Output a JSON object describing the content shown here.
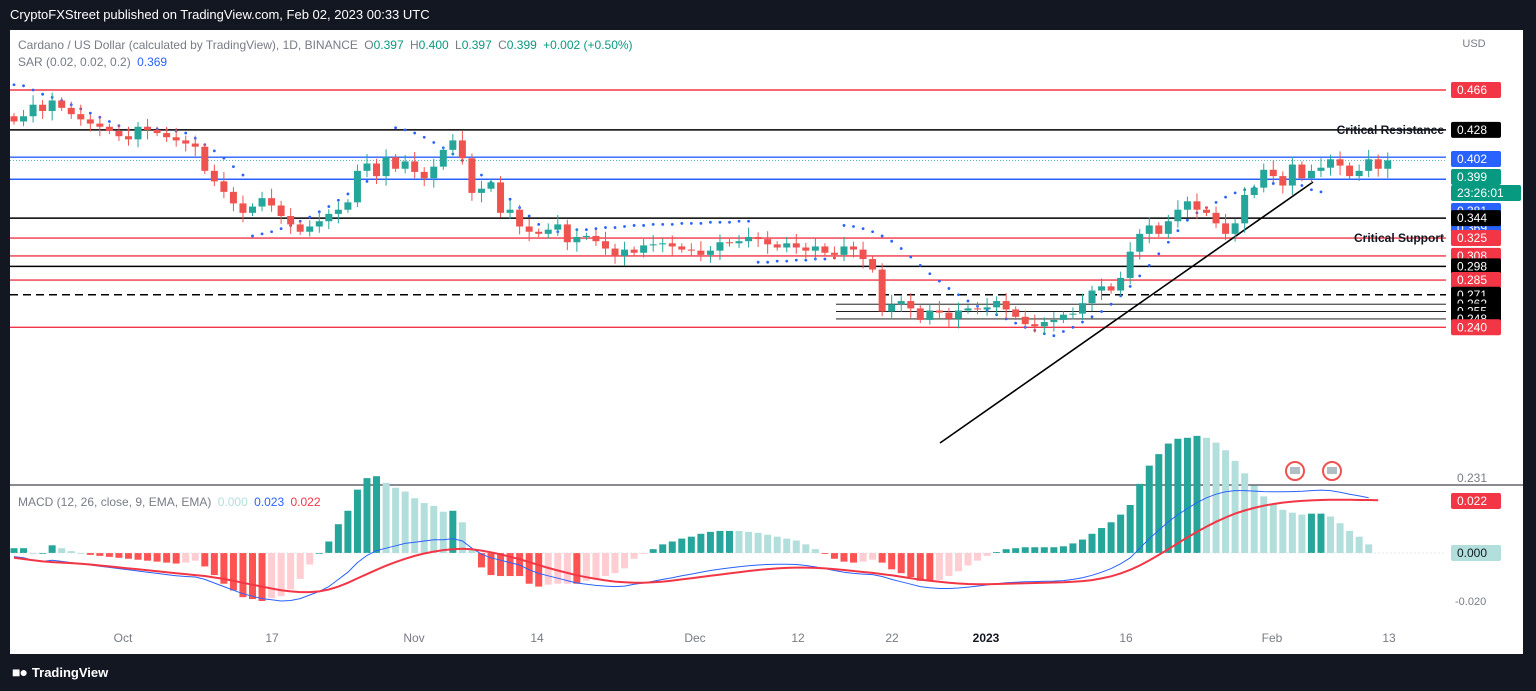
{
  "header": {
    "published_text": "CryptoFXStreet published on TradingView.com, Feb 02, 2023 00:33 UTC"
  },
  "footer": {
    "brand": "TradingView"
  },
  "legend": {
    "symbol": "Cardano / US Dollar (calculated by TradingView), 1D, BINANCE",
    "o_label": "O",
    "o_val": "0.397",
    "h_label": "H",
    "h_val": "0.400",
    "l_label": "L",
    "l_val": "0.397",
    "c_label": "C",
    "c_val": "0.399",
    "change": "+0.002 (+0.50%)",
    "sar_label": "SAR (0.02, 0.02, 0.2)",
    "sar_val": "0.369",
    "macd_label": "MACD (12, 26, close, 9, EMA, EMA)",
    "macd_hist": "0.000",
    "macd_line": "0.023",
    "macd_signal": "0.022"
  },
  "colors": {
    "up": "#26a69a",
    "down": "#ef5350",
    "sar": "#2962ff",
    "macd_line": "#2962ff",
    "signal_line": "#f23645",
    "hist_up": "#26a69a",
    "hist_up_weak": "#b2dfdb",
    "hist_down": "#ff5252",
    "hist_down_weak": "#ffcdd2",
    "resistance": "#f23645",
    "support_black": "#000000",
    "blue_level": "#2962ff"
  },
  "chart_data": [
    {
      "type": "candlestick",
      "symbol": "ADA/USD",
      "timeframe": "1D",
      "y_axis_unit": "USD",
      "ylim": [
        0.225,
        0.482
      ],
      "x_ticks": [
        "Oct",
        "17",
        "Nov",
        "14",
        "Dec",
        "12",
        "22",
        "2023",
        "16",
        "Feb",
        "13"
      ],
      "x_range": [
        "2022-09-23",
        "2023-02-18"
      ],
      "annotations": [
        {
          "label": "Critical Resistance",
          "value": 0.428
        },
        {
          "label": "Critical Support",
          "value": 0.325
        }
      ],
      "horizontal_levels": [
        {
          "value": 0.466,
          "style": "red"
        },
        {
          "value": 0.428,
          "style": "black"
        },
        {
          "value": 0.402,
          "style": "blue"
        },
        {
          "value": 0.381,
          "style": "blue"
        },
        {
          "value": 0.344,
          "style": "black"
        },
        {
          "value": 0.325,
          "style": "red"
        },
        {
          "value": 0.308,
          "style": "red"
        },
        {
          "value": 0.298,
          "style": "black"
        },
        {
          "value": 0.285,
          "style": "red"
        },
        {
          "value": 0.271,
          "style": "black-dashed"
        },
        {
          "value": 0.262,
          "style": "black-thin"
        },
        {
          "value": 0.255,
          "style": "black-thin"
        },
        {
          "value": 0.248,
          "style": "black-thin"
        },
        {
          "value": 0.24,
          "style": "red"
        }
      ],
      "price_badges": [
        {
          "value": "0.466",
          "style": "red"
        },
        {
          "value": "0.428",
          "style": "black"
        },
        {
          "value": "0.402",
          "style": "blue"
        },
        {
          "value": "0.399",
          "style": "green"
        },
        {
          "value": "23:26:01",
          "style": "green"
        },
        {
          "value": "0.381",
          "style": "blue"
        },
        {
          "value": "0.369",
          "style": "blue"
        },
        {
          "value": "0.344",
          "style": "black"
        },
        {
          "value": "0.325",
          "style": "red"
        },
        {
          "value": "0.308",
          "style": "red"
        },
        {
          "value": "0.298",
          "style": "black"
        },
        {
          "value": "0.285",
          "style": "red"
        },
        {
          "value": "0.271",
          "style": "black"
        },
        {
          "value": "0.262",
          "style": "black"
        },
        {
          "value": "0.255",
          "style": "black"
        },
        {
          "value": "0.248",
          "style": "black"
        },
        {
          "value": "0.240",
          "style": "red"
        },
        {
          "value": "0.231",
          "style": "plain"
        }
      ],
      "closes": [
        0.436,
        0.441,
        0.452,
        0.446,
        0.456,
        0.449,
        0.443,
        0.438,
        0.434,
        0.431,
        0.427,
        0.422,
        0.419,
        0.431,
        0.428,
        0.425,
        0.421,
        0.418,
        0.415,
        0.412,
        0.389,
        0.379,
        0.369,
        0.358,
        0.349,
        0.355,
        0.363,
        0.356,
        0.346,
        0.338,
        0.331,
        0.336,
        0.341,
        0.348,
        0.352,
        0.359,
        0.389,
        0.396,
        0.384,
        0.402,
        0.391,
        0.398,
        0.388,
        0.382,
        0.393,
        0.409,
        0.418,
        0.401,
        0.368,
        0.372,
        0.378,
        0.349,
        0.352,
        0.336,
        0.331,
        0.329,
        0.333,
        0.338,
        0.321,
        0.326,
        0.327,
        0.322,
        0.315,
        0.308,
        0.314,
        0.311,
        0.318,
        0.319,
        0.32,
        0.317,
        0.314,
        0.313,
        0.309,
        0.313,
        0.321,
        0.32,
        0.322,
        0.326,
        0.324,
        0.319,
        0.316,
        0.32,
        0.316,
        0.313,
        0.317,
        0.311,
        0.309,
        0.317,
        0.314,
        0.305,
        0.295,
        0.255,
        0.262,
        0.265,
        0.258,
        0.247,
        0.256,
        0.254,
        0.248,
        0.256,
        0.258,
        0.257,
        0.259,
        0.265,
        0.257,
        0.25,
        0.243,
        0.241,
        0.245,
        0.247,
        0.252,
        0.253,
        0.263,
        0.275,
        0.279,
        0.275,
        0.287,
        0.312,
        0.329,
        0.337,
        0.329,
        0.341,
        0.352,
        0.36,
        0.352,
        0.349,
        0.339,
        0.329,
        0.339,
        0.366,
        0.373,
        0.39,
        0.384,
        0.375,
        0.395,
        0.382,
        0.389,
        0.392,
        0.4,
        0.394,
        0.384,
        0.389,
        0.4,
        0.391,
        0.399
      ],
      "sar_values": [
        0.471,
        0.47,
        0.466,
        0.462,
        0.459,
        0.456,
        0.452,
        0.448,
        0.444,
        0.44,
        0.436,
        0.432,
        0.428,
        0.425,
        0.43,
        0.429,
        0.428,
        0.427,
        0.425,
        0.42,
        0.414,
        0.408,
        0.401,
        0.393,
        0.385,
        0.327,
        0.329,
        0.331,
        0.334,
        0.337,
        0.341,
        0.345,
        0.35,
        0.355,
        0.361,
        0.367,
        0.373,
        0.379,
        0.385,
        0.391,
        0.43,
        0.428,
        0.425,
        0.421,
        0.416,
        0.411,
        0.405,
        0.399,
        0.392,
        0.385,
        0.378,
        0.37,
        0.362,
        0.354,
        0.346,
        0.338,
        0.331,
        0.331,
        0.332,
        0.333,
        0.333,
        0.334,
        0.335,
        0.335,
        0.336,
        0.337,
        0.337,
        0.338,
        0.338,
        0.338,
        0.339,
        0.339,
        0.339,
        0.34,
        0.34,
        0.34,
        0.341,
        0.341,
        0.302,
        0.302,
        0.303,
        0.303,
        0.304,
        0.304,
        0.305,
        0.305,
        0.306,
        0.337,
        0.336,
        0.334,
        0.331,
        0.327,
        0.322,
        0.315,
        0.307,
        0.299,
        0.291,
        0.284,
        0.277,
        0.271,
        0.265,
        0.26,
        0.256,
        0.252,
        0.248,
        0.244,
        0.24,
        0.237,
        0.234,
        0.232,
        0.236,
        0.24,
        0.245,
        0.25,
        0.255,
        0.262,
        0.27,
        0.279,
        0.289,
        0.299,
        0.31,
        0.321,
        0.332,
        0.342,
        0.349,
        0.354,
        0.359,
        0.364,
        0.368,
        0.371,
        0.373,
        0.375,
        0.377,
        0.379,
        0.381,
        0.375,
        0.371,
        0.369
      ]
    },
    {
      "type": "macd",
      "params": "12, 26, close, 9, EMA, EMA",
      "ylim": [
        -0.028,
        0.03
      ],
      "y_ticks": [
        0.0,
        -0.02
      ],
      "macd": [
        -0.0015,
        -0.002,
        -0.003,
        -0.0035,
        -0.003,
        -0.0035,
        -0.004,
        -0.0045,
        -0.005,
        -0.0055,
        -0.006,
        -0.0065,
        -0.007,
        -0.0075,
        -0.008,
        -0.0085,
        -0.009,
        -0.0095,
        -0.0098,
        -0.01,
        -0.011,
        -0.0125,
        -0.014,
        -0.0155,
        -0.017,
        -0.018,
        -0.019,
        -0.0195,
        -0.02,
        -0.0198,
        -0.019,
        -0.0175,
        -0.016,
        -0.014,
        -0.011,
        -0.008,
        -0.004,
        -0.001,
        0.001,
        0.002,
        0.003,
        0.004,
        0.0045,
        0.005,
        0.0055,
        0.0055,
        0.006,
        0.005,
        0.002,
        -0.0005,
        -0.002,
        -0.003,
        -0.004,
        -0.005,
        -0.007,
        -0.0085,
        -0.0095,
        -0.0105,
        -0.0115,
        -0.0125,
        -0.013,
        -0.0135,
        -0.0138,
        -0.014,
        -0.0138,
        -0.013,
        -0.0125,
        -0.0118,
        -0.011,
        -0.0103,
        -0.0095,
        -0.0088,
        -0.008,
        -0.0073,
        -0.0067,
        -0.0062,
        -0.0057,
        -0.0053,
        -0.005,
        -0.0048,
        -0.0047,
        -0.0047,
        -0.0048,
        -0.0052,
        -0.0058,
        -0.0065,
        -0.0073,
        -0.008,
        -0.0085,
        -0.0088,
        -0.009,
        -0.0098,
        -0.011,
        -0.012,
        -0.013,
        -0.014,
        -0.0145,
        -0.0148,
        -0.0148,
        -0.0146,
        -0.0142,
        -0.0138,
        -0.0133,
        -0.0128,
        -0.0124,
        -0.0122,
        -0.012,
        -0.0119,
        -0.0118,
        -0.0117,
        -0.0115,
        -0.011,
        -0.0103,
        -0.0093,
        -0.008,
        -0.0065,
        -0.0045,
        -0.002,
        0.002,
        0.006,
        0.0095,
        0.013,
        0.016,
        0.0185,
        0.021,
        0.023,
        0.0245,
        0.0255,
        0.026,
        0.026,
        0.0258,
        0.0256,
        0.0255,
        0.0255,
        0.0256,
        0.0257,
        0.026,
        0.0262,
        0.026,
        0.0253,
        0.0245,
        0.0238,
        0.023
      ],
      "signal": [
        -0.002,
        -0.0025,
        -0.003,
        -0.0035,
        -0.0038,
        -0.004,
        -0.0042,
        -0.0045,
        -0.0048,
        -0.0052,
        -0.0056,
        -0.006,
        -0.0064,
        -0.0068,
        -0.0072,
        -0.0076,
        -0.008,
        -0.0084,
        -0.0088,
        -0.0092,
        -0.0096,
        -0.0102,
        -0.0108,
        -0.0116,
        -0.0124,
        -0.0132,
        -0.014,
        -0.0148,
        -0.0155,
        -0.016,
        -0.0163,
        -0.0163,
        -0.016,
        -0.0152,
        -0.014,
        -0.0124,
        -0.0106,
        -0.0088,
        -0.007,
        -0.0053,
        -0.0038,
        -0.0024,
        -0.0012,
        -0.0002,
        0.0006,
        0.0012,
        0.0016,
        0.0018,
        0.0016,
        0.001,
        0.0003,
        -0.0006,
        -0.0016,
        -0.0026,
        -0.0038,
        -0.005,
        -0.0062,
        -0.0073,
        -0.0083,
        -0.0093,
        -0.0101,
        -0.0108,
        -0.0114,
        -0.0119,
        -0.0122,
        -0.0124,
        -0.0124,
        -0.0122,
        -0.0119,
        -0.0115,
        -0.011,
        -0.0105,
        -0.01,
        -0.0095,
        -0.009,
        -0.0085,
        -0.008,
        -0.0075,
        -0.0071,
        -0.0067,
        -0.0064,
        -0.0062,
        -0.0061,
        -0.0061,
        -0.0062,
        -0.0064,
        -0.0067,
        -0.0071,
        -0.0075,
        -0.0079,
        -0.0083,
        -0.0088,
        -0.0093,
        -0.0099,
        -0.0105,
        -0.0111,
        -0.0116,
        -0.012,
        -0.0124,
        -0.0127,
        -0.0129,
        -0.013,
        -0.013,
        -0.0129,
        -0.0128,
        -0.0127,
        -0.0126,
        -0.0125,
        -0.0124,
        -0.0123,
        -0.0122,
        -0.012,
        -0.0117,
        -0.0113,
        -0.0106,
        -0.0097,
        -0.0085,
        -0.007,
        -0.0052,
        -0.0031,
        -0.0008,
        0.0016,
        0.0041,
        0.0065,
        0.0088,
        0.011,
        0.013,
        0.0148,
        0.0164,
        0.0177,
        0.0188,
        0.0197,
        0.0204,
        0.021,
        0.0214,
        0.0217,
        0.0219,
        0.0221,
        0.0222,
        0.0222,
        0.0222,
        0.0221,
        0.0221,
        0.022
      ]
    }
  ]
}
